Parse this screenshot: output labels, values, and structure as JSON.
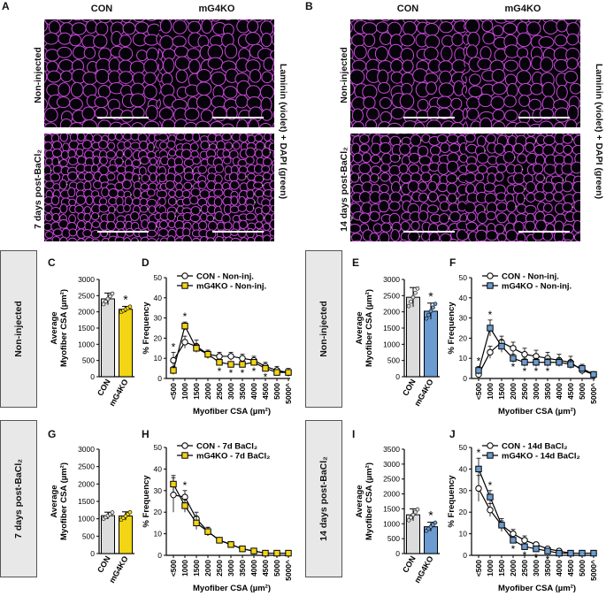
{
  "panel_letters": {
    "A": "A",
    "B": "B",
    "C": "C",
    "D": "D",
    "E": "E",
    "F": "F",
    "G": "G",
    "H": "H",
    "I": "I",
    "J": "J"
  },
  "image_panels": {
    "col_con": "CON",
    "col_mg4ko": "mG4KO",
    "row_noninjected": "Non-injected",
    "row_7d": "7 days post-BaCl₂",
    "row_14d": "14 days post-BaCl₂",
    "stain_label": "Laminin (violet) + DAPI (green)"
  },
  "side_labels": {
    "noninjected": "Non-injected",
    "days7": "7 days post-BaCl₂",
    "days14": "14 days post-BaCl₂"
  },
  "colors": {
    "con": "#dcdcdc",
    "mg4ko_yellow": "#f2d514",
    "mg4ko_blue": "#6b9bd1",
    "membrane": "#c84ad8",
    "dapi": "#8fd66b"
  },
  "chart_data": [
    {
      "id": "C",
      "type": "bar",
      "title": "",
      "ylabel": "Average\nMyofiber CSA (µm²)",
      "ylabel_lines": [
        "Average",
        "Myofiber CSA (µm²)"
      ],
      "categories": [
        "CON",
        "mG4KO"
      ],
      "values": [
        2400,
        2080
      ],
      "errors": [
        180,
        90
      ],
      "ylim": [
        0,
        3000
      ],
      "yticks": [
        "0",
        "500",
        "1000",
        "1500",
        "2000",
        "2500",
        "3000"
      ],
      "colors": [
        "#dcdcdc",
        "#f2d514"
      ],
      "sig": [
        "",
        "*"
      ]
    },
    {
      "id": "D",
      "type": "line",
      "ylabel": "% Frequency",
      "xlabel": "Myofiber CSA (µm²)",
      "categories": [
        "<500",
        "1000",
        "1500",
        "2000",
        "2500",
        "3000",
        "3500",
        "4000",
        "4500",
        "5000",
        "5000^"
      ],
      "ylim": [
        0,
        50
      ],
      "yticks": [
        "0",
        "10",
        "20",
        "30",
        "40",
        "50"
      ],
      "series": [
        {
          "name": "CON - Non-inj.",
          "marker": "circle",
          "fill": "#ffffff",
          "values": [
            9,
            18,
            16,
            12,
            11,
            11,
            10,
            9,
            6,
            4,
            3
          ],
          "errors": [
            4,
            3,
            3,
            2,
            2,
            2,
            2,
            2,
            2,
            2,
            2
          ]
        },
        {
          "name": "mG4KO - Non-inj.",
          "marker": "square",
          "fill": "#f2d514",
          "values": [
            4,
            26,
            15,
            12,
            8,
            7,
            7,
            8,
            5,
            3,
            3
          ],
          "errors": [
            2,
            2,
            2,
            2,
            1,
            1,
            1,
            1,
            1,
            1,
            1
          ]
        }
      ],
      "sig": [
        "*",
        "*",
        "",
        "",
        "*",
        "*",
        "*",
        "*",
        "*",
        "",
        ""
      ]
    },
    {
      "id": "E",
      "type": "bar",
      "ylabel_lines": [
        "Average",
        "Myofiber CSA (µm²)"
      ],
      "categories": [
        "CON",
        "mG4KO"
      ],
      "values": [
        2450,
        2020
      ],
      "errors": [
        300,
        250
      ],
      "ylim": [
        0,
        3000
      ],
      "yticks": [
        "0",
        "500",
        "1000",
        "1500",
        "2000",
        "2500",
        "3000"
      ],
      "colors": [
        "#dcdcdc",
        "#6b9bd1"
      ],
      "sig": [
        "",
        "*"
      ]
    },
    {
      "id": "F",
      "type": "line",
      "ylabel": "% Frequency",
      "xlabel": "Myofiber CSA (µm²)",
      "categories": [
        "<500",
        "1000",
        "1500",
        "2000",
        "2500",
        "3000",
        "3500",
        "4000",
        "4500",
        "5000",
        "5000^"
      ],
      "ylim": [
        0,
        50
      ],
      "yticks": [
        "0",
        "10",
        "20",
        "30",
        "40",
        "50"
      ],
      "series": [
        {
          "name": "CON - Non-inj.",
          "marker": "circle",
          "fill": "#ffffff",
          "values": [
            2,
            13,
            18,
            15,
            12,
            11,
            10,
            9,
            8,
            4,
            2
          ],
          "errors": [
            1,
            3,
            3,
            3,
            3,
            3,
            3,
            3,
            3,
            2,
            1
          ]
        },
        {
          "name": "mG4KO - Non-inj.",
          "marker": "square",
          "fill": "#6b9bd1",
          "values": [
            4,
            25,
            16,
            10,
            8,
            8,
            8,
            8,
            7,
            5,
            2
          ],
          "errors": [
            2,
            4,
            3,
            2,
            2,
            2,
            2,
            2,
            2,
            2,
            1
          ]
        }
      ],
      "sig": [
        "*",
        "*",
        "",
        "*",
        "*",
        "*",
        "*",
        "",
        "",
        "",
        ""
      ]
    },
    {
      "id": "G",
      "type": "bar",
      "ylabel_lines": [
        "Average",
        "Myofiber CSA (µm²)"
      ],
      "categories": [
        "CON",
        "mG4KO"
      ],
      "values": [
        1090,
        1080
      ],
      "errors": [
        100,
        120
      ],
      "ylim": [
        0,
        3000
      ],
      "yticks": [
        "0",
        "500",
        "1000",
        "1500",
        "2000",
        "2500",
        "3000"
      ],
      "colors": [
        "#dcdcdc",
        "#f2d514"
      ],
      "sig": [
        "",
        ""
      ]
    },
    {
      "id": "H",
      "type": "line",
      "ylabel": "% Frequency",
      "xlabel": "Myofiber CSA (µm²)",
      "categories": [
        "<500",
        "1000",
        "1500",
        "2000",
        "2500",
        "3000",
        "3500",
        "4000",
        "4500",
        "5000",
        "5000^"
      ],
      "ylim": [
        0,
        50
      ],
      "yticks": [
        "0",
        "10",
        "20",
        "30",
        "40",
        "50"
      ],
      "series": [
        {
          "name": "CON - 7d BaCl₂",
          "marker": "circle",
          "fill": "#ffffff",
          "values": [
            28,
            27,
            17,
            11,
            7,
            5,
            3,
            2,
            1,
            1,
            1
          ],
          "errors": [
            8,
            3,
            3,
            2,
            1,
            1,
            1,
            1,
            1,
            1,
            1
          ]
        },
        {
          "name": "mG4KO - 7d BaCl₂",
          "marker": "square",
          "fill": "#f2d514",
          "values": [
            33,
            23,
            15,
            11,
            7,
            5,
            3,
            2,
            1,
            1,
            1
          ],
          "errors": [
            4,
            3,
            3,
            2,
            1,
            1,
            1,
            1,
            1,
            1,
            1
          ]
        }
      ],
      "sig": [
        "",
        "*",
        "",
        "",
        "",
        "",
        "",
        "",
        "",
        "",
        ""
      ]
    },
    {
      "id": "I",
      "type": "bar",
      "ylabel_lines": [
        "Average",
        "Myofiber CSA (µm²)"
      ],
      "categories": [
        "CON",
        "mG4KO"
      ],
      "values": [
        1300,
        900
      ],
      "errors": [
        200,
        150
      ],
      "ylim": [
        0,
        3500
      ],
      "yticks": [
        "0",
        "500",
        "1000",
        "1500",
        "2000",
        "2500",
        "3000",
        "3500"
      ],
      "colors": [
        "#dcdcdc",
        "#6b9bd1"
      ],
      "sig": [
        "",
        "*"
      ]
    },
    {
      "id": "J",
      "type": "line",
      "ylabel": "% Frequency",
      "xlabel": "Myofiber CSA (µm²)",
      "categories": [
        "<500",
        "1000",
        "1500",
        "2000",
        "2500",
        "3000",
        "3500",
        "4000",
        "4500",
        "5000",
        "5000^"
      ],
      "ylim": [
        0,
        50
      ],
      "yticks": [
        "0",
        "10",
        "20",
        "30",
        "40",
        "50"
      ],
      "series": [
        {
          "name": "CON - 14d BaCl₂",
          "marker": "circle",
          "fill": "#ffffff",
          "values": [
            31,
            21,
            14,
            10,
            7,
            5,
            3,
            2,
            1,
            1,
            1
          ],
          "errors": [
            6,
            3,
            3,
            2,
            2,
            1,
            1,
            1,
            1,
            1,
            1
          ]
        },
        {
          "name": "mG4KO - 14d BaCl₂",
          "marker": "square",
          "fill": "#6b9bd1",
          "values": [
            40,
            27,
            14,
            7,
            4,
            3,
            2,
            1,
            1,
            1,
            1
          ],
          "errors": [
            5,
            3,
            2,
            1,
            1,
            1,
            1,
            1,
            1,
            1,
            1
          ]
        }
      ],
      "sig": [
        "*",
        "*",
        "",
        "*",
        "*",
        "*",
        "*",
        "",
        "",
        "",
        ""
      ]
    }
  ]
}
